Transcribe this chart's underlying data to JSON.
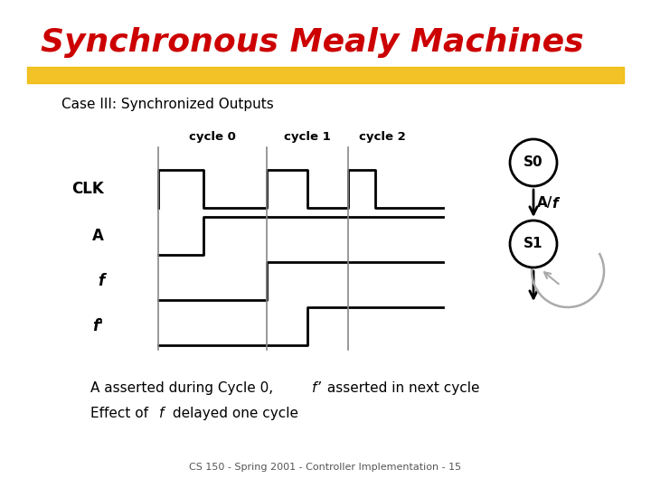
{
  "title": "Synchronous Mealy Machines",
  "subtitle": "Case III: Synchronized Outputs",
  "title_color": "#cc0000",
  "title_fontsize": 26,
  "highlight_color": "#f0b800",
  "bg_color": "#ffffff",
  "signal_labels": [
    "CLK",
    "A",
    "f",
    "f'"
  ],
  "cycle_labels": [
    "cycle 0",
    "cycle 1",
    "cycle 2"
  ],
  "footer": "CS 150 - Spring 2001 - Controller Implementation - 15",
  "state_s0": "S0",
  "state_s1": "S1",
  "arc_label_A": "A/",
  "arc_label_f": "f"
}
